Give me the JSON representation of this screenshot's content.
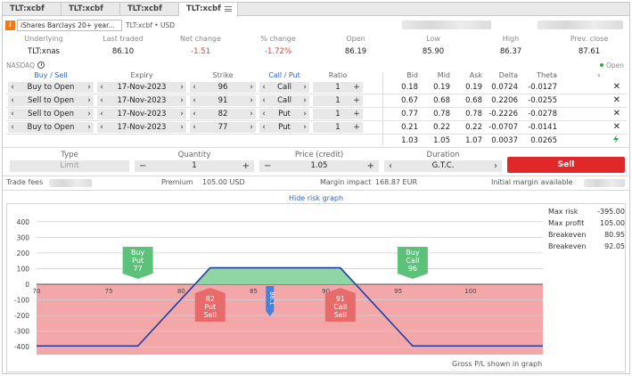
{
  "tabs": [
    {
      "label": "TLT:xcbf",
      "active": false
    },
    {
      "label": "TLT:xcbf",
      "active": false
    },
    {
      "label": "TLT:xcbf",
      "active": false
    },
    {
      "label": "TLT:xcbf",
      "active": true
    }
  ],
  "instrument": {
    "logo": "i",
    "name": "iShares Barclays 20+ year...",
    "subtitle": "TLT:xcbf • USD"
  },
  "quote": {
    "headers": [
      "Underlying",
      "Last traded",
      "Net change",
      "% change",
      "Open",
      "Low",
      "High",
      "Prev. close"
    ],
    "values": [
      "TLT:xnas",
      "86.10",
      "-1.51",
      "-1.72%",
      "86.19",
      "85.90",
      "86.37",
      "87.61"
    ],
    "exchange": "NASDAQ",
    "status": "Open"
  },
  "legs": {
    "headers": {
      "buy_sell": "Buy / Sell",
      "expiry": "Expiry",
      "strike": "Strike",
      "call_put": "Call / Put",
      "ratio": "Ratio",
      "bid": "Bid",
      "mid": "Mid",
      "ask": "Ask",
      "delta": "Delta",
      "theta": "Theta"
    },
    "rows": [
      {
        "side": "Buy to Open",
        "expiry": "17-Nov-2023",
        "strike": "96",
        "type": "Call",
        "ratio": "1",
        "bid": "0.18",
        "mid": "0.19",
        "ask": "0.19",
        "delta": "0.0724",
        "theta": "-0.0127"
      },
      {
        "side": "Sell to Open",
        "expiry": "17-Nov-2023",
        "strike": "91",
        "type": "Call",
        "ratio": "1",
        "bid": "0.67",
        "mid": "0.68",
        "ask": "0.68",
        "delta": "0.2206",
        "theta": "-0.0255"
      },
      {
        "side": "Sell to Open",
        "expiry": "17-Nov-2023",
        "strike": "82",
        "type": "Put",
        "ratio": "1",
        "bid": "0.77",
        "mid": "0.78",
        "ask": "0.78",
        "delta": "-0.2226",
        "theta": "-0.0278"
      },
      {
        "side": "Buy to Open",
        "expiry": "17-Nov-2023",
        "strike": "77",
        "type": "Put",
        "ratio": "1",
        "bid": "0.21",
        "mid": "0.22",
        "ask": "0.22",
        "delta": "-0.0707",
        "theta": "-0.0141"
      }
    ],
    "totals": {
      "bid": "1.03",
      "mid": "1.05",
      "ask": "1.07",
      "delta": "0.0037",
      "theta": "0.0265"
    }
  },
  "order": {
    "type_label": "Type",
    "type_value": "Limit",
    "quantity_label": "Quantity",
    "quantity_value": "1",
    "price_label": "Price (credit)",
    "price_value": "1.05",
    "duration_label": "Duration",
    "duration_value": "G.T.C.",
    "sell_label": "Sell"
  },
  "fees": {
    "trade_fees_label": "Trade fees",
    "premium_label": "Premium",
    "premium_value": "105.00 USD",
    "margin_label": "Margin impact",
    "margin_value": "168.87 EUR",
    "initial_margin_label": "Initial margin available"
  },
  "risk_graph": {
    "toggle_label": "Hide risk graph",
    "footer": "Gross P/L shown in graph"
  },
  "stats": [
    {
      "label": "Max risk",
      "value": "-395.00"
    },
    {
      "label": "Max profit",
      "value": "105.00"
    },
    {
      "label": "Breakeven",
      "value": "80.95"
    },
    {
      "label": "Breakeven",
      "value": "92.05"
    }
  ],
  "chart_data": {
    "type": "line",
    "x_ticks": [
      70,
      75,
      80,
      85,
      90,
      95,
      100
    ],
    "y_ticks": [
      400,
      300,
      200,
      100,
      0,
      -100,
      -200,
      -300,
      -400
    ],
    "xlim": [
      70,
      105
    ],
    "ylim": [
      -450,
      450
    ],
    "x": [
      70,
      77,
      82,
      91,
      96,
      105
    ],
    "y": [
      -395,
      -395,
      105,
      105,
      -395,
      -395
    ],
    "underlying_label": "86.1",
    "underlying_price": 86.1,
    "markers": [
      {
        "l1": "Buy",
        "l2": "Put",
        "l3": "77",
        "strike": 77,
        "side": "buy"
      },
      {
        "l1": "82",
        "l2": "Put",
        "l3": "Sell",
        "strike": 82,
        "side": "sell"
      },
      {
        "l1": "91",
        "l2": "Call",
        "l3": "Sell",
        "strike": 91,
        "side": "sell"
      },
      {
        "l1": "Buy",
        "l2": "Call",
        "l3": "96",
        "strike": 96,
        "side": "buy"
      }
    ],
    "colors": {
      "line": "#1e3fa8",
      "loss": "#f3a7a9",
      "profit": "#8fd6a4",
      "buy": "#5cc27a",
      "sell": "#e86b6b",
      "price": "#4a7fd8"
    }
  }
}
